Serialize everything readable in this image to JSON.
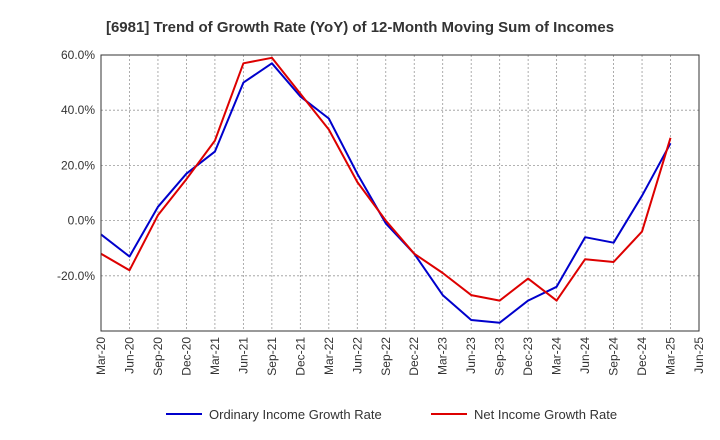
{
  "chart_data": {
    "type": "line",
    "title": "[6981]  Trend of Growth Rate (YoY) of 12-Month Moving Sum of Incomes",
    "xlabel": "",
    "ylabel": "",
    "ylim": [
      -40,
      60
    ],
    "yticks": [
      60,
      40,
      20,
      0,
      -20
    ],
    "ytick_labels": [
      "60.0%",
      "40.0%",
      "20.0%",
      "0.0%",
      "-20.0%"
    ],
    "grid": true,
    "legend_position": "bottom",
    "categories": [
      "Mar-20",
      "Jun-20",
      "Sep-20",
      "Dec-20",
      "Mar-21",
      "Jun-21",
      "Sep-21",
      "Dec-21",
      "Mar-22",
      "Jun-22",
      "Sep-22",
      "Dec-22",
      "Mar-23",
      "Jun-23",
      "Sep-23",
      "Dec-23",
      "Mar-24",
      "Jun-24",
      "Sep-24",
      "Dec-24",
      "Mar-25",
      "Jun-25"
    ],
    "series": [
      {
        "name": "Ordinary Income Growth Rate",
        "color": "#0000cc",
        "values": [
          -5,
          -13,
          5,
          17,
          25,
          50,
          57,
          45,
          37,
          17,
          -1,
          -12,
          -27,
          -36,
          -37,
          -29,
          -24,
          -6,
          -8,
          9,
          28,
          null
        ]
      },
      {
        "name": "Net Income Growth Rate",
        "color": "#dd0000",
        "values": [
          -12,
          -18,
          2,
          15,
          29,
          57,
          59,
          46,
          33,
          14,
          0,
          -12,
          -19,
          -27,
          -29,
          -21,
          -29,
          -14,
          -15,
          -4,
          30,
          null
        ]
      }
    ]
  }
}
